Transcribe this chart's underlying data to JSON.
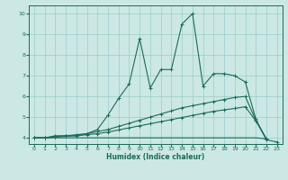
{
  "title": "",
  "xlabel": "Humidex (Indice chaleur)",
  "bg_color": "#cce8e4",
  "line_color": "#1a6b5a",
  "grid_color": "#99cccc",
  "xlim": [
    -0.5,
    23.5
  ],
  "ylim": [
    3.7,
    10.4
  ],
  "xticks": [
    0,
    1,
    2,
    3,
    4,
    5,
    6,
    7,
    8,
    9,
    10,
    11,
    12,
    13,
    14,
    15,
    16,
    17,
    18,
    19,
    20,
    21,
    22,
    23
  ],
  "yticks": [
    4,
    5,
    6,
    7,
    8,
    9,
    10
  ],
  "series1": [
    [
      0,
      4.0
    ],
    [
      1,
      4.0
    ],
    [
      2,
      4.1
    ],
    [
      3,
      4.1
    ],
    [
      4,
      4.1
    ],
    [
      5,
      4.2
    ],
    [
      6,
      4.4
    ],
    [
      7,
      5.1
    ],
    [
      8,
      5.9
    ],
    [
      9,
      6.6
    ],
    [
      10,
      8.8
    ],
    [
      11,
      6.4
    ],
    [
      12,
      7.3
    ],
    [
      13,
      7.3
    ],
    [
      14,
      9.5
    ],
    [
      15,
      10.0
    ],
    [
      16,
      6.5
    ],
    [
      17,
      7.1
    ],
    [
      18,
      7.1
    ],
    [
      19,
      7.0
    ],
    [
      20,
      6.7
    ],
    [
      21,
      4.9
    ],
    [
      22,
      3.9
    ],
    [
      23,
      3.8
    ]
  ],
  "series2": [
    [
      0,
      4.0
    ],
    [
      1,
      4.0
    ],
    [
      2,
      4.05
    ],
    [
      3,
      4.1
    ],
    [
      4,
      4.15
    ],
    [
      5,
      4.2
    ],
    [
      6,
      4.3
    ],
    [
      7,
      4.4
    ],
    [
      8,
      4.55
    ],
    [
      9,
      4.7
    ],
    [
      10,
      4.85
    ],
    [
      11,
      5.0
    ],
    [
      12,
      5.15
    ],
    [
      13,
      5.3
    ],
    [
      14,
      5.45
    ],
    [
      15,
      5.55
    ],
    [
      16,
      5.65
    ],
    [
      17,
      5.75
    ],
    [
      18,
      5.85
    ],
    [
      19,
      5.95
    ],
    [
      20,
      6.0
    ],
    [
      21,
      4.85
    ],
    [
      22,
      3.95
    ]
  ],
  "series3": [
    [
      0,
      4.0
    ],
    [
      1,
      4.0
    ],
    [
      2,
      4.03
    ],
    [
      3,
      4.07
    ],
    [
      4,
      4.1
    ],
    [
      5,
      4.15
    ],
    [
      6,
      4.2
    ],
    [
      7,
      4.28
    ],
    [
      8,
      4.38
    ],
    [
      9,
      4.48
    ],
    [
      10,
      4.58
    ],
    [
      11,
      4.68
    ],
    [
      12,
      4.78
    ],
    [
      13,
      4.88
    ],
    [
      14,
      4.98
    ],
    [
      15,
      5.08
    ],
    [
      16,
      5.18
    ],
    [
      17,
      5.28
    ],
    [
      18,
      5.35
    ],
    [
      19,
      5.42
    ],
    [
      20,
      5.5
    ],
    [
      21,
      4.82
    ],
    [
      22,
      3.93
    ]
  ],
  "series4": [
    [
      0,
      4.0
    ],
    [
      1,
      4.0
    ],
    [
      2,
      4.0
    ],
    [
      3,
      4.0
    ],
    [
      4,
      4.0
    ],
    [
      5,
      4.0
    ],
    [
      6,
      4.0
    ],
    [
      7,
      4.0
    ],
    [
      8,
      4.0
    ],
    [
      9,
      4.0
    ],
    [
      10,
      4.0
    ],
    [
      11,
      4.0
    ],
    [
      12,
      4.0
    ],
    [
      13,
      4.0
    ],
    [
      14,
      4.0
    ],
    [
      15,
      4.0
    ],
    [
      16,
      4.0
    ],
    [
      17,
      4.0
    ],
    [
      18,
      4.0
    ],
    [
      19,
      4.0
    ],
    [
      20,
      4.0
    ],
    [
      21,
      4.0
    ],
    [
      22,
      3.95
    ]
  ]
}
